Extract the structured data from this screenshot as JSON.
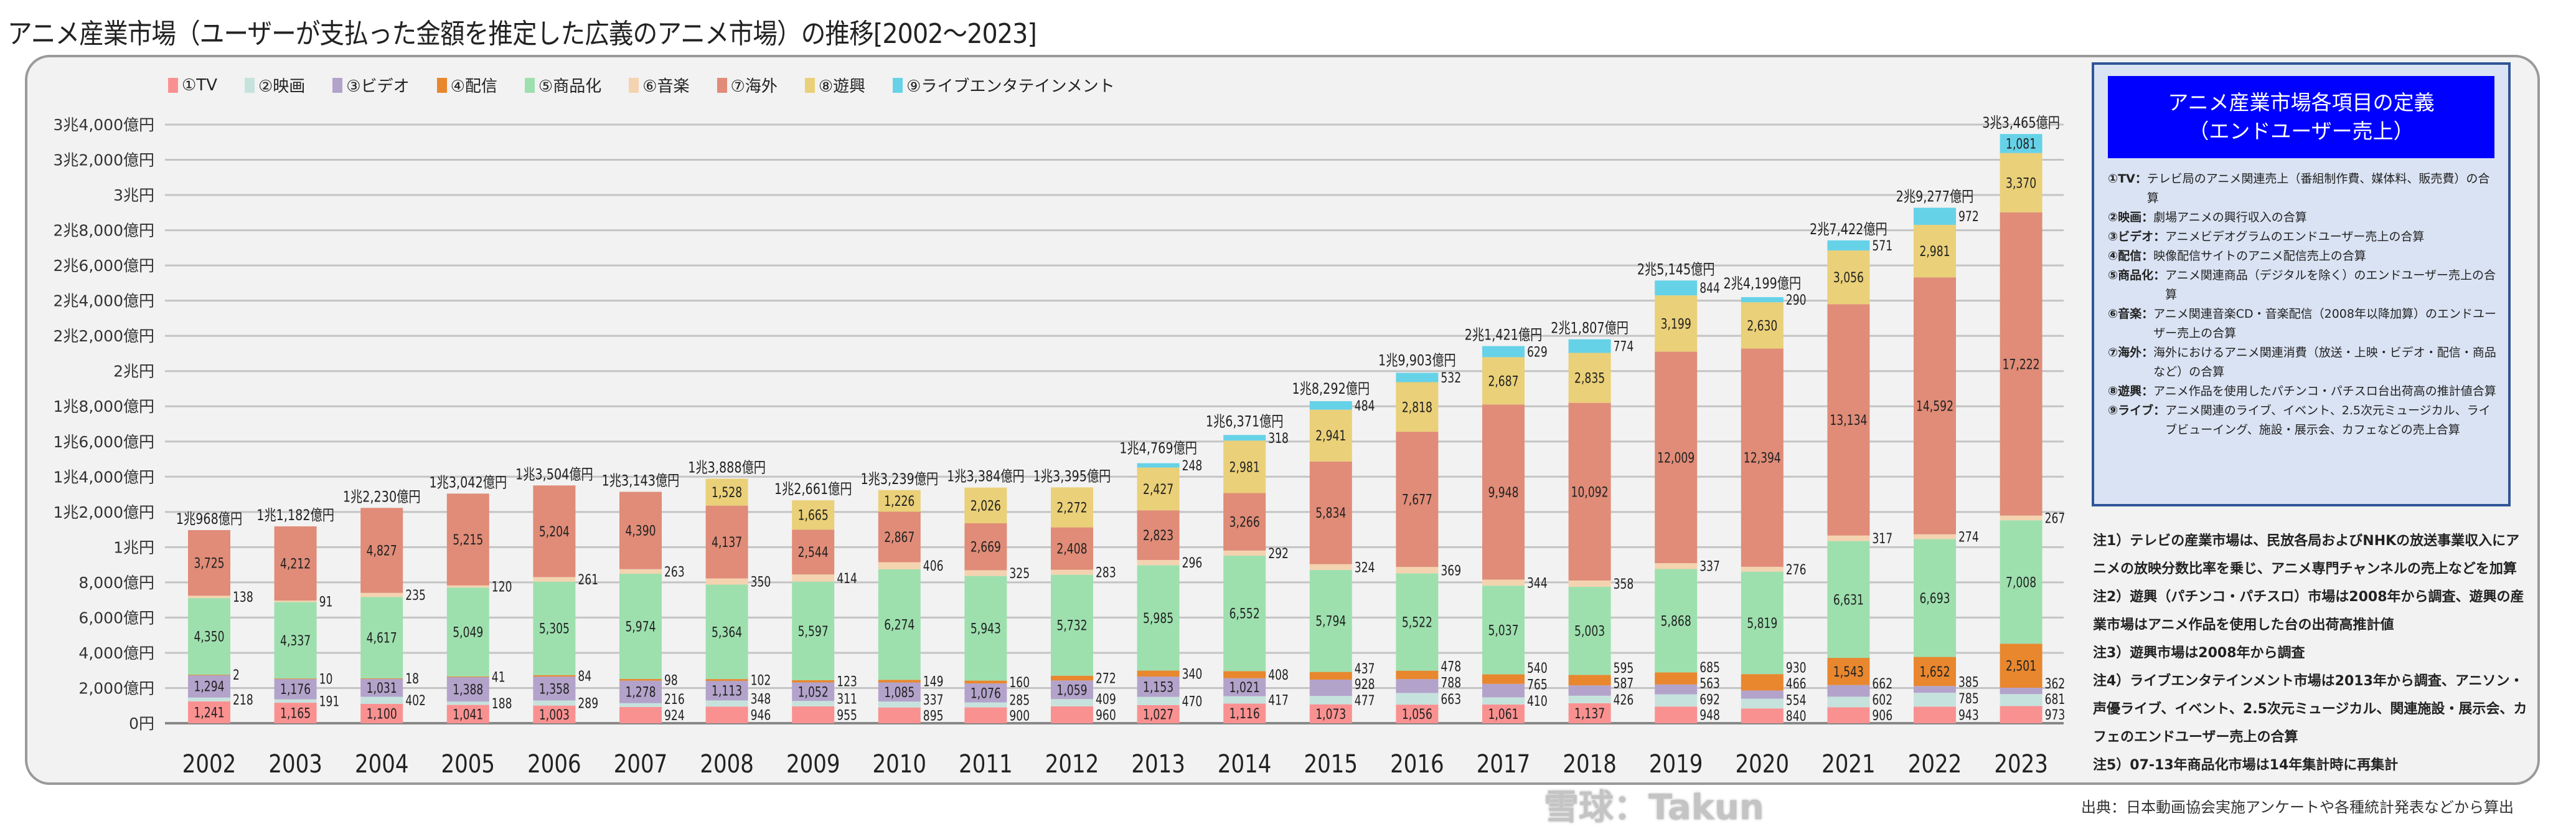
{
  "title": "アニメ産業市場（ユーザーが支払った金額を推定した広義のアニメ市場）の推移[2002〜2023]",
  "chart_data": {
    "type": "bar",
    "stacked": true,
    "title": "アニメ産業市場（ユーザーが支払った金額を推定した広義のアニメ市場）の推移[2002〜2023]",
    "unit": "億円",
    "ylim": [
      0,
      34000
    ],
    "grid": true,
    "legend_position": "top-left",
    "categories": [
      "2002",
      "2003",
      "2004",
      "2005",
      "2006",
      "2007",
      "2008",
      "2009",
      "2010",
      "2011",
      "2012",
      "2013",
      "2014",
      "2015",
      "2016",
      "2017",
      "2018",
      "2019",
      "2020",
      "2021",
      "2022",
      "2023"
    ],
    "yticks": [
      "0円",
      "2,000億円",
      "4,000億円",
      "6,000億円",
      "8,000億円",
      "1兆円",
      "1兆2,000億円",
      "1兆4,000億円",
      "1兆6,000億円",
      "1兆8,000億円",
      "2兆円",
      "2兆2,000億円",
      "2兆4,000億円",
      "2兆6,000億円",
      "2兆8,000億円",
      "3兆円",
      "3兆2,000億円",
      "3兆4,000億円"
    ],
    "series": [
      {
        "name": "①TV",
        "color": "#fa9191",
        "values": [
          1241,
          1165,
          1100,
          1041,
          1003,
          924,
          946,
          955,
          895,
          900,
          960,
          1027,
          1116,
          1073,
          1056,
          1061,
          1137,
          948,
          840,
          906,
          943,
          973
        ]
      },
      {
        "name": "②映画",
        "color": "#c6e2dd",
        "values": [
          218,
          191,
          402,
          188,
          289,
          216,
          348,
          311,
          337,
          285,
          409,
          470,
          417,
          477,
          663,
          410,
          426,
          692,
          554,
          602,
          785,
          681
        ]
      },
      {
        "name": "③ビデオ",
        "color": "#b3a3cb",
        "values": [
          1294,
          1176,
          1031,
          1388,
          1358,
          1278,
          1113,
          1052,
          1085,
          1076,
          1059,
          1153,
          1021,
          928,
          788,
          765,
          587,
          563,
          466,
          662,
          385,
          362
        ]
      },
      {
        "name": "④配信",
        "color": "#e8872e",
        "values": [
          2,
          10,
          18,
          41,
          84,
          98,
          102,
          123,
          149,
          160,
          272,
          340,
          408,
          437,
          478,
          540,
          595,
          685,
          930,
          1543,
          1652,
          2501
        ]
      },
      {
        "name": "⑤商品化",
        "color": "#9de0ae",
        "values": [
          4350,
          4337,
          4617,
          5049,
          5305,
          5974,
          5364,
          5597,
          6274,
          5943,
          5732,
          5985,
          6552,
          5794,
          5522,
          5037,
          5003,
          5868,
          5819,
          6631,
          6693,
          7008
        ]
      },
      {
        "name": "⑥音楽",
        "color": "#f4d3b0",
        "values": [
          138,
          91,
          235,
          120,
          261,
          263,
          350,
          414,
          406,
          325,
          283,
          296,
          292,
          324,
          369,
          344,
          358,
          337,
          276,
          317,
          274,
          267
        ]
      },
      {
        "name": "⑦海外",
        "color": "#e08c78",
        "values": [
          3725,
          4212,
          4827,
          5215,
          5204,
          4390,
          4137,
          2544,
          2867,
          2669,
          2408,
          2823,
          3266,
          5834,
          7677,
          9948,
          10092,
          12009,
          12394,
          13134,
          14592,
          17222
        ]
      },
      {
        "name": "⑧遊興",
        "color": "#ead078",
        "values": [
          null,
          null,
          null,
          null,
          null,
          null,
          1528,
          1665,
          1226,
          2026,
          2272,
          2427,
          2981,
          2941,
          2818,
          2687,
          2835,
          3199,
          2630,
          3056,
          2981,
          3370
        ]
      },
      {
        "name": "⑨ライブエンタテインメント",
        "color": "#66d2e8",
        "values": [
          null,
          null,
          null,
          null,
          null,
          null,
          null,
          null,
          null,
          null,
          null,
          248,
          318,
          484,
          532,
          629,
          774,
          844,
          290,
          571,
          972,
          1081
        ]
      }
    ],
    "totals": [
      "1兆968億円",
      "1兆1,182億円",
      "1兆2,230億円",
      "1兆3,042億円",
      "1兆3,504億円",
      "1兆3,143億円",
      "1兆3,888億円",
      "1兆2,661億円",
      "1兆3,239億円",
      "1兆3,384億円",
      "1兆3,395億円",
      "1兆4,769億円",
      "1兆6,371億円",
      "1兆8,292億円",
      "1兆9,903億円",
      "2兆1,421億円",
      "2兆1,807億円",
      "2兆5,145億円",
      "2兆4,199億円",
      "2兆7,422億円",
      "2兆9,277億円",
      "3兆3,465億円"
    ]
  },
  "definitions": {
    "heading_line1": "アニメ産業市場各項目の定義",
    "heading_line2": "（エンドユーザー売上）",
    "items": [
      {
        "key": "①TV：",
        "text": "テレビ局のアニメ関連売上（番組制作費、媒体料、販売費）の合算"
      },
      {
        "key": "②映画：",
        "text": "劇場アニメの興行収入の合算"
      },
      {
        "key": "③ビデオ：",
        "text": "アニメビデオグラムのエンドユーザー売上の合算"
      },
      {
        "key": "④配信：",
        "text": "映像配信サイトのアニメ配信売上の合算"
      },
      {
        "key": "⑤商品化：",
        "text": "アニメ関連商品（デジタルを除く）のエンドユーザー売上の合算"
      },
      {
        "key": "⑥音楽：",
        "text": "アニメ関連音楽CD・音楽配信（2008年以降加算）のエンドユーザー売上の合算"
      },
      {
        "key": "⑦海外：",
        "text": "海外におけるアニメ関連消費（放送・上映・ビデオ・配信・商品など）の合算"
      },
      {
        "key": "⑧遊興：",
        "text": "アニメ作品を使用したパチンコ・パチスロ台出荷高の推計値合算"
      },
      {
        "key": "⑨ライブ：",
        "text": "アニメ関連のライブ、イベント、2.5次元ミュージカル、ライブビューイング、施設・展示会、カフェなどの売上合算"
      }
    ]
  },
  "notes": [
    "注1）テレビの産業市場は、民放各局およびNHKの放送事業収入にアニメの放映分数比率を乗じ、アニメ専門チャンネルの売上などを加算",
    "注2）遊興（パチンコ・パチスロ）市場は2008年から調査、遊興の産業市場はアニメ作品を使用した台の出荷高推計値",
    "注3）遊興市場は2008年から調査",
    "注4）ライブエンタテインメント市場は2013年から調査、アニソン・声優ライブ、イベント、2.5次元ミュージカル、関連施設・展示会、カフェのエンドユーザー売上の合算",
    "注5）07-13年商品化市場は14年集計時に再集計"
  ],
  "source": "出典：日本動画協会実施アンケートや各種統計発表などから算出",
  "watermark": "雪球：Takun"
}
